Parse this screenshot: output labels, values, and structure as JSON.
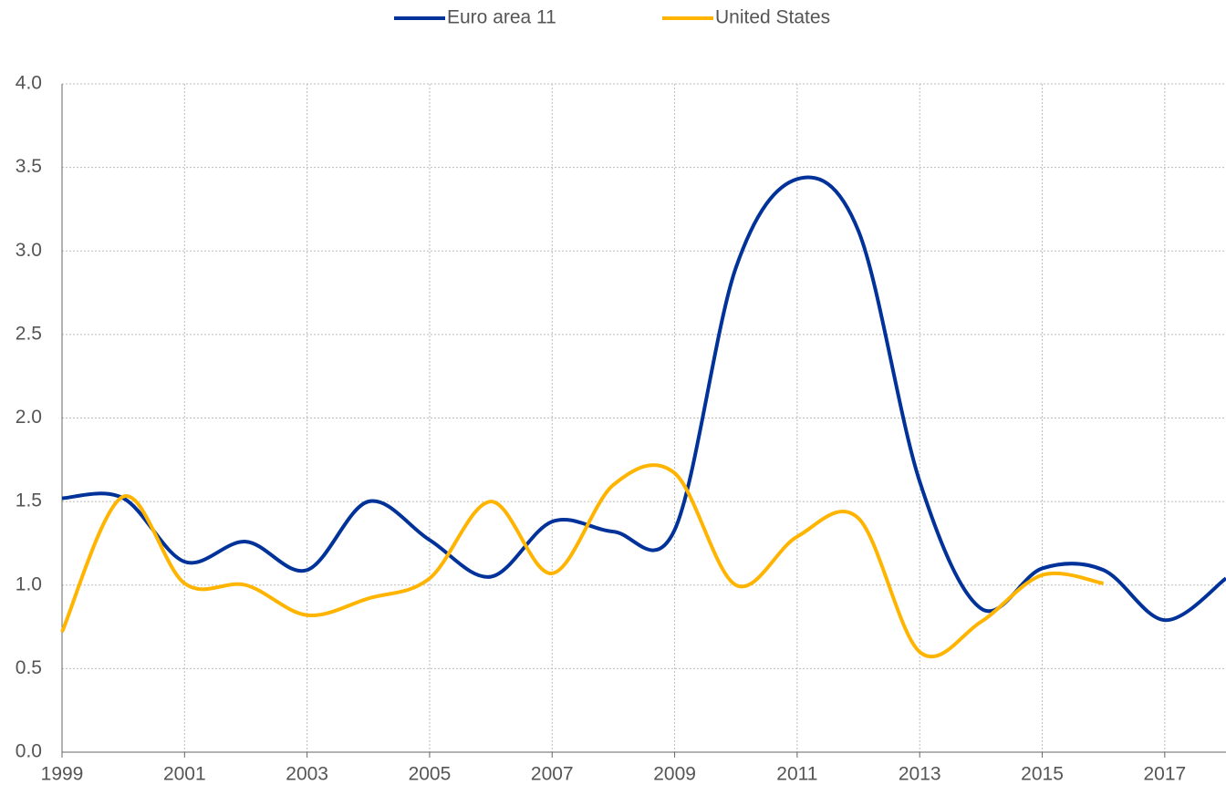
{
  "chart_data": {
    "type": "line",
    "x": [
      1999,
      2000,
      2001,
      2002,
      2003,
      2004,
      2005,
      2006,
      2007,
      2008,
      2009,
      2010,
      2011,
      2012,
      2013,
      2014,
      2015,
      2016,
      2017,
      2018
    ],
    "series": [
      {
        "name": "Euro area 11",
        "color": "#003299",
        "values": [
          1.52,
          1.52,
          1.14,
          1.26,
          1.09,
          1.5,
          1.27,
          1.05,
          1.38,
          1.32,
          1.33,
          2.9,
          3.43,
          3.12,
          1.62,
          0.86,
          1.1,
          1.09,
          0.79,
          1.04
        ]
      },
      {
        "name": "United States",
        "color": "#ffb400",
        "values": [
          0.72,
          1.53,
          1.01,
          1.0,
          0.82,
          0.92,
          1.04,
          1.5,
          1.07,
          1.6,
          1.67,
          1.0,
          1.29,
          1.4,
          0.6,
          0.78,
          1.06,
          1.01,
          null,
          null
        ]
      }
    ],
    "xlim": [
      1999,
      2018
    ],
    "xticks": [
      1999,
      2001,
      2003,
      2005,
      2007,
      2009,
      2011,
      2013,
      2015,
      2017
    ],
    "ylim": [
      0,
      4
    ],
    "yticks": [
      {
        "value": 0,
        "label": "0.0"
      },
      {
        "value": 0.5,
        "label": "0.5"
      },
      {
        "value": 1,
        "label": "1.0"
      },
      {
        "value": 1.5,
        "label": "1.5"
      },
      {
        "value": 2,
        "label": "2.0"
      },
      {
        "value": 2.5,
        "label": "2.5"
      },
      {
        "value": 3,
        "label": "3.0"
      },
      {
        "value": 3.5,
        "label": "3.5"
      },
      {
        "value": 4,
        "label": "4.0"
      }
    ],
    "grid": true
  }
}
